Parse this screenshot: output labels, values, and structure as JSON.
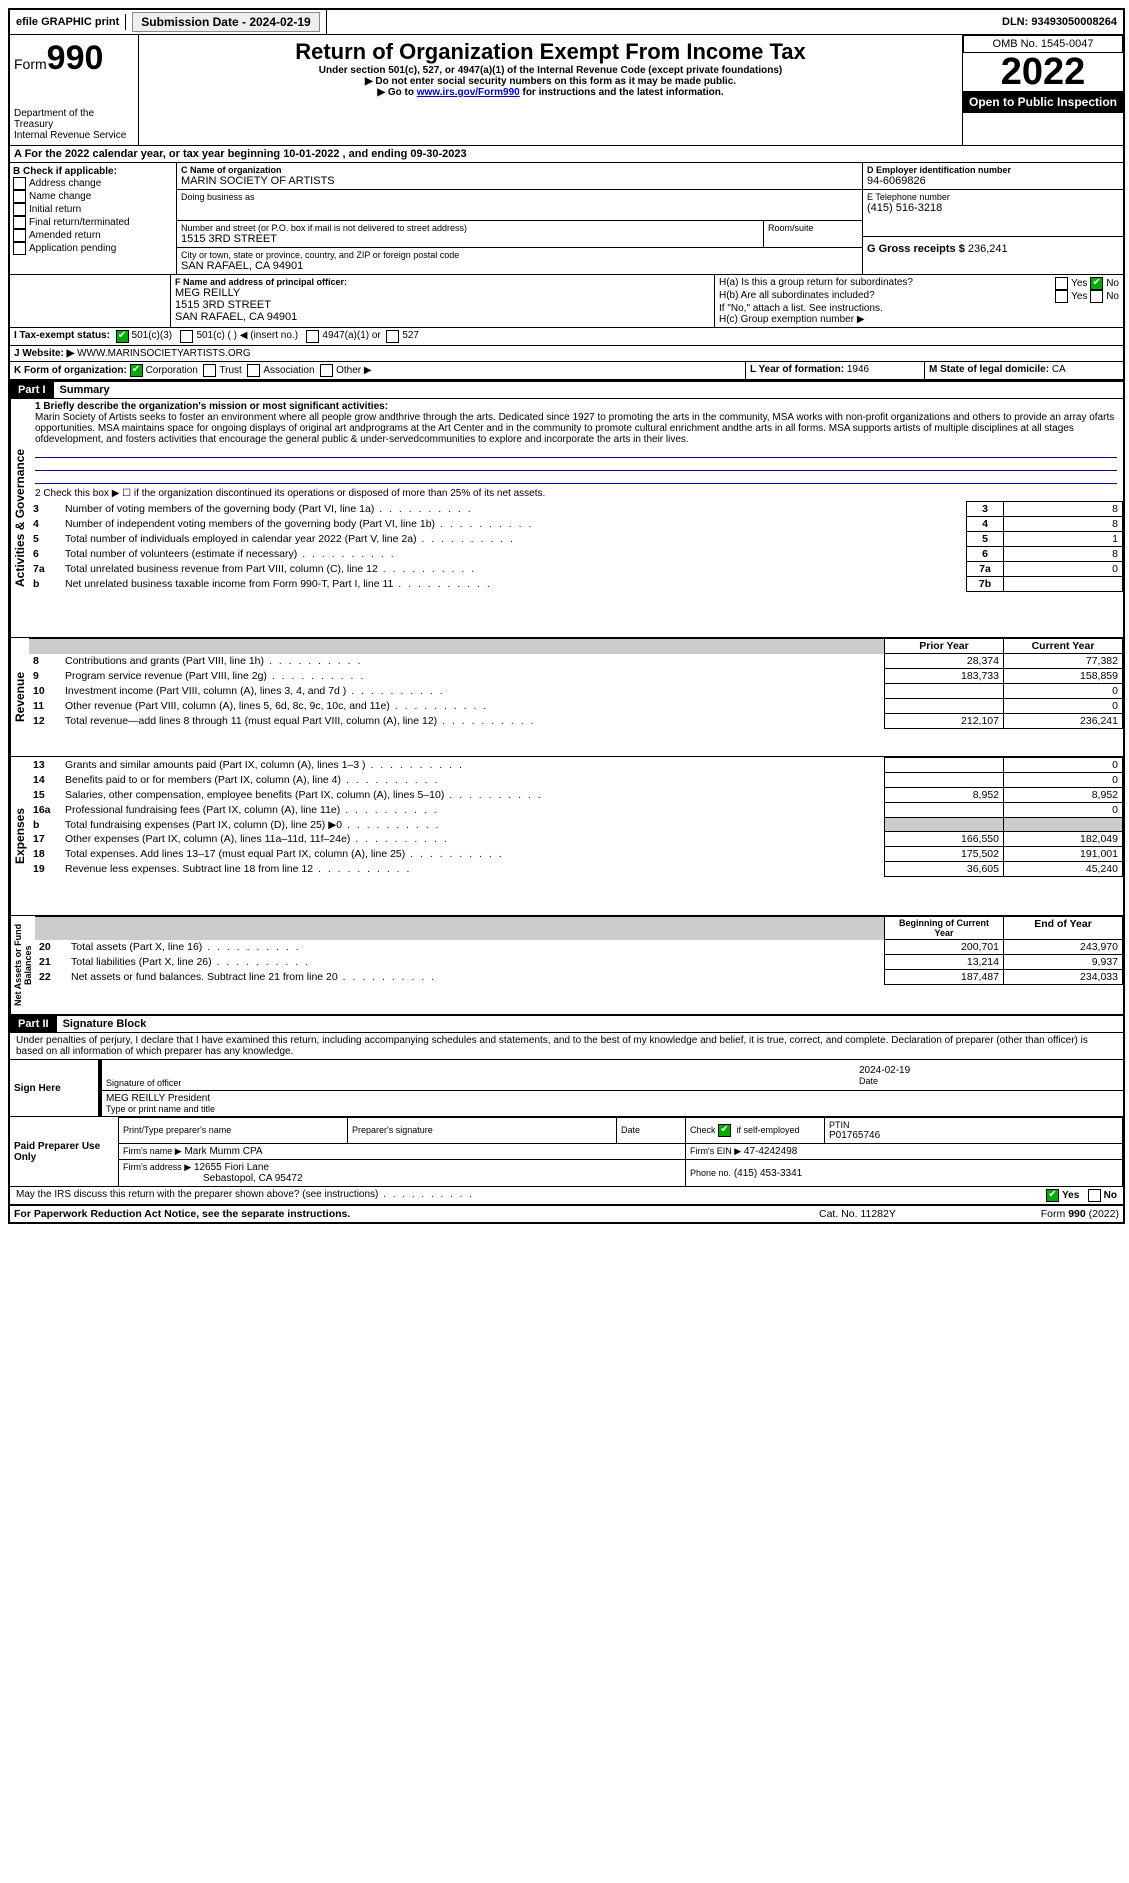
{
  "topbar": {
    "efile": "efile GRAPHIC print",
    "submission_label": "Submission Date - 2024-02-19",
    "dln": "DLN: 93493050008264"
  },
  "header": {
    "form_label": "Form",
    "form_number": "990",
    "title": "Return of Organization Exempt From Income Tax",
    "subtitle": "Under section 501(c), 527, or 4947(a)(1) of the Internal Revenue Code (except private foundations)",
    "warn": "▶ Do not enter social security numbers on this form as it may be made public.",
    "goto_prefix": "▶ Go to ",
    "goto_link": "www.irs.gov/Form990",
    "goto_suffix": " for instructions and the latest information.",
    "dept": "Department of the Treasury",
    "irs": "Internal Revenue Service",
    "omb": "OMB No. 1545-0047",
    "year": "2022",
    "open": "Open to Public Inspection"
  },
  "line_a": "A For the 2022 calendar year, or tax year beginning 10-01-2022  , and ending 09-30-2023",
  "b": {
    "label": "B Check if applicable:",
    "opts": [
      "Address change",
      "Name change",
      "Initial return",
      "Final return/terminated",
      "Amended return",
      "Application pending"
    ]
  },
  "c": {
    "name_label": "C Name of organization",
    "name": "MARIN SOCIETY OF ARTISTS",
    "dba_label": "Doing business as",
    "street_label": "Number and street (or P.O. box if mail is not delivered to street address)",
    "room_label": "Room/suite",
    "street": "1515 3RD STREET",
    "city_label": "City or town, state or province, country, and ZIP or foreign postal code",
    "city": "SAN RAFAEL, CA  94901"
  },
  "d": {
    "label": "D Employer identification number",
    "value": "94-6069826"
  },
  "e": {
    "label": "E Telephone number",
    "value": "(415) 516-3218"
  },
  "g": {
    "label": "G Gross receipts $",
    "value": "236,241"
  },
  "f": {
    "label": "F  Name and address of principal officer:",
    "name": "MEG REILLY",
    "street": "1515 3RD STREET",
    "city": "SAN RAFAEL, CA  94901"
  },
  "h": {
    "a": "H(a)  Is this a group return for subordinates?",
    "b": "H(b)  Are all subordinates included?",
    "b_note": "If \"No,\" attach a list. See instructions.",
    "c": "H(c)  Group exemption number ▶",
    "yes": "Yes",
    "no": "No"
  },
  "i": {
    "label": "I   Tax-exempt status:",
    "o1": "501(c)(3)",
    "o2": "501(c) (  ) ◀ (insert no.)",
    "o3": "4947(a)(1) or",
    "o4": "527"
  },
  "j": {
    "label": "J   Website: ▶",
    "value": "WWW.MARINSOCIETYARTISTS.ORG"
  },
  "k": {
    "label": "K Form of organization:",
    "corp": "Corporation",
    "trust": "Trust",
    "assoc": "Association",
    "other": "Other ▶"
  },
  "l": {
    "label": "L Year of formation:",
    "value": "1946"
  },
  "m": {
    "label": "M State of legal domicile:",
    "value": "CA"
  },
  "part1": {
    "hdr": "Part I",
    "title": "Summary",
    "q1_label": "1  Briefly describe the organization's mission or most significant activities:",
    "q1_text": "Marin Society of Artists seeks to foster an environment where all people grow andthrive through the arts. Dedicated since 1927 to promoting the arts in the community, MSA works with non-profit organizations and others to provide an array ofarts opportunities. MSA maintains space for ongoing displays of original art andprograms at the Art Center and in the community to promote cultural enrichment andthe arts in all forms. MSA supports artists of multiple disciplines at all stages ofdevelopment, and fosters activities that encourage the general public & under-servedcommunities to explore and incorporate the arts in their lives.",
    "q2": "2   Check this box ▶ ☐  if the organization discontinued its operations or disposed of more than 25% of its net assets.",
    "rows_ag": [
      {
        "n": "3",
        "t": "Number of voting members of the governing body (Part VI, line 1a)",
        "c": "3",
        "v": "8"
      },
      {
        "n": "4",
        "t": "Number of independent voting members of the governing body (Part VI, line 1b)",
        "c": "4",
        "v": "8"
      },
      {
        "n": "5",
        "t": "Total number of individuals employed in calendar year 2022 (Part V, line 2a)",
        "c": "5",
        "v": "1"
      },
      {
        "n": "6",
        "t": "Total number of volunteers (estimate if necessary)",
        "c": "6",
        "v": "8"
      },
      {
        "n": "7a",
        "t": "Total unrelated business revenue from Part VIII, column (C), line 12",
        "c": "7a",
        "v": "0"
      },
      {
        "n": "b",
        "t": "Net unrelated business taxable income from Form 990-T, Part I, line 11",
        "c": "7b",
        "v": ""
      }
    ],
    "py": "Prior Year",
    "cy": "Current Year",
    "rev": [
      {
        "n": "8",
        "t": "Contributions and grants (Part VIII, line 1h)",
        "p": "28,374",
        "c": "77,382"
      },
      {
        "n": "9",
        "t": "Program service revenue (Part VIII, line 2g)",
        "p": "183,733",
        "c": "158,859"
      },
      {
        "n": "10",
        "t": "Investment income (Part VIII, column (A), lines 3, 4, and 7d )",
        "p": "",
        "c": "0"
      },
      {
        "n": "11",
        "t": "Other revenue (Part VIII, column (A), lines 5, 6d, 8c, 9c, 10c, and 11e)",
        "p": "",
        "c": "0"
      },
      {
        "n": "12",
        "t": "Total revenue—add lines 8 through 11 (must equal Part VIII, column (A), line 12)",
        "p": "212,107",
        "c": "236,241"
      }
    ],
    "exp": [
      {
        "n": "13",
        "t": "Grants and similar amounts paid (Part IX, column (A), lines 1–3 )",
        "p": "",
        "c": "0"
      },
      {
        "n": "14",
        "t": "Benefits paid to or for members (Part IX, column (A), line 4)",
        "p": "",
        "c": "0"
      },
      {
        "n": "15",
        "t": "Salaries, other compensation, employee benefits (Part IX, column (A), lines 5–10)",
        "p": "8,952",
        "c": "8,952"
      },
      {
        "n": "16a",
        "t": "Professional fundraising fees (Part IX, column (A), line 11e)",
        "p": "",
        "c": "0"
      },
      {
        "n": "b",
        "t": "Total fundraising expenses (Part IX, column (D), line 25) ▶0",
        "p": "grey",
        "c": "grey"
      },
      {
        "n": "17",
        "t": "Other expenses (Part IX, column (A), lines 11a–11d, 11f–24e)",
        "p": "166,550",
        "c": "182,049"
      },
      {
        "n": "18",
        "t": "Total expenses. Add lines 13–17 (must equal Part IX, column (A), line 25)",
        "p": "175,502",
        "c": "191,001"
      },
      {
        "n": "19",
        "t": "Revenue less expenses. Subtract line 18 from line 12",
        "p": "36,605",
        "c": "45,240"
      }
    ],
    "bcy": "Beginning of Current Year",
    "ey": "End of Year",
    "net": [
      {
        "n": "20",
        "t": "Total assets (Part X, line 16)",
        "p": "200,701",
        "c": "243,970"
      },
      {
        "n": "21",
        "t": "Total liabilities (Part X, line 26)",
        "p": "13,214",
        "c": "9,937"
      },
      {
        "n": "22",
        "t": "Net assets or fund balances. Subtract line 21 from line 20",
        "p": "187,487",
        "c": "234,033"
      }
    ],
    "side_ag": "Activities & Governance",
    "side_rev": "Revenue",
    "side_exp": "Expenses",
    "side_net": "Net Assets or Fund Balances"
  },
  "part2": {
    "hdr": "Part II",
    "title": "Signature Block",
    "decl": "Under penalties of perjury, I declare that I have examined this return, including accompanying schedules and statements, and to the best of my knowledge and belief, it is true, correct, and complete. Declaration of preparer (other than officer) is based on all information of which preparer has any knowledge.",
    "sign_here": "Sign Here",
    "sig_officer": "Signature of officer",
    "date": "Date",
    "date_val": "2024-02-19",
    "officer_name": "MEG REILLY President",
    "type_name": "Type or print name and title",
    "paid": "Paid Preparer Use Only",
    "prep_name_label": "Print/Type preparer's name",
    "prep_sig": "Preparer's signature",
    "check_se": "Check ☑ if self-employed",
    "ptin_label": "PTIN",
    "ptin": "P01765746",
    "firm_name_label": "Firm's name   ▶",
    "firm_name": "Mark Mumm CPA",
    "firm_ein_label": "Firm's EIN ▶",
    "firm_ein": "47-4242498",
    "firm_addr_label": "Firm's address ▶",
    "firm_addr1": "12655 Fiori Lane",
    "firm_addr2": "Sebastopol, CA  95472",
    "phone_label": "Phone no.",
    "phone": "(415) 453-3341",
    "discuss": "May the IRS discuss this return with the preparer shown above? (see instructions)",
    "yes": "Yes",
    "no": "No"
  },
  "footer": {
    "pra": "For Paperwork Reduction Act Notice, see the separate instructions.",
    "cat": "Cat. No. 11282Y",
    "form": "Form 990 (2022)"
  }
}
